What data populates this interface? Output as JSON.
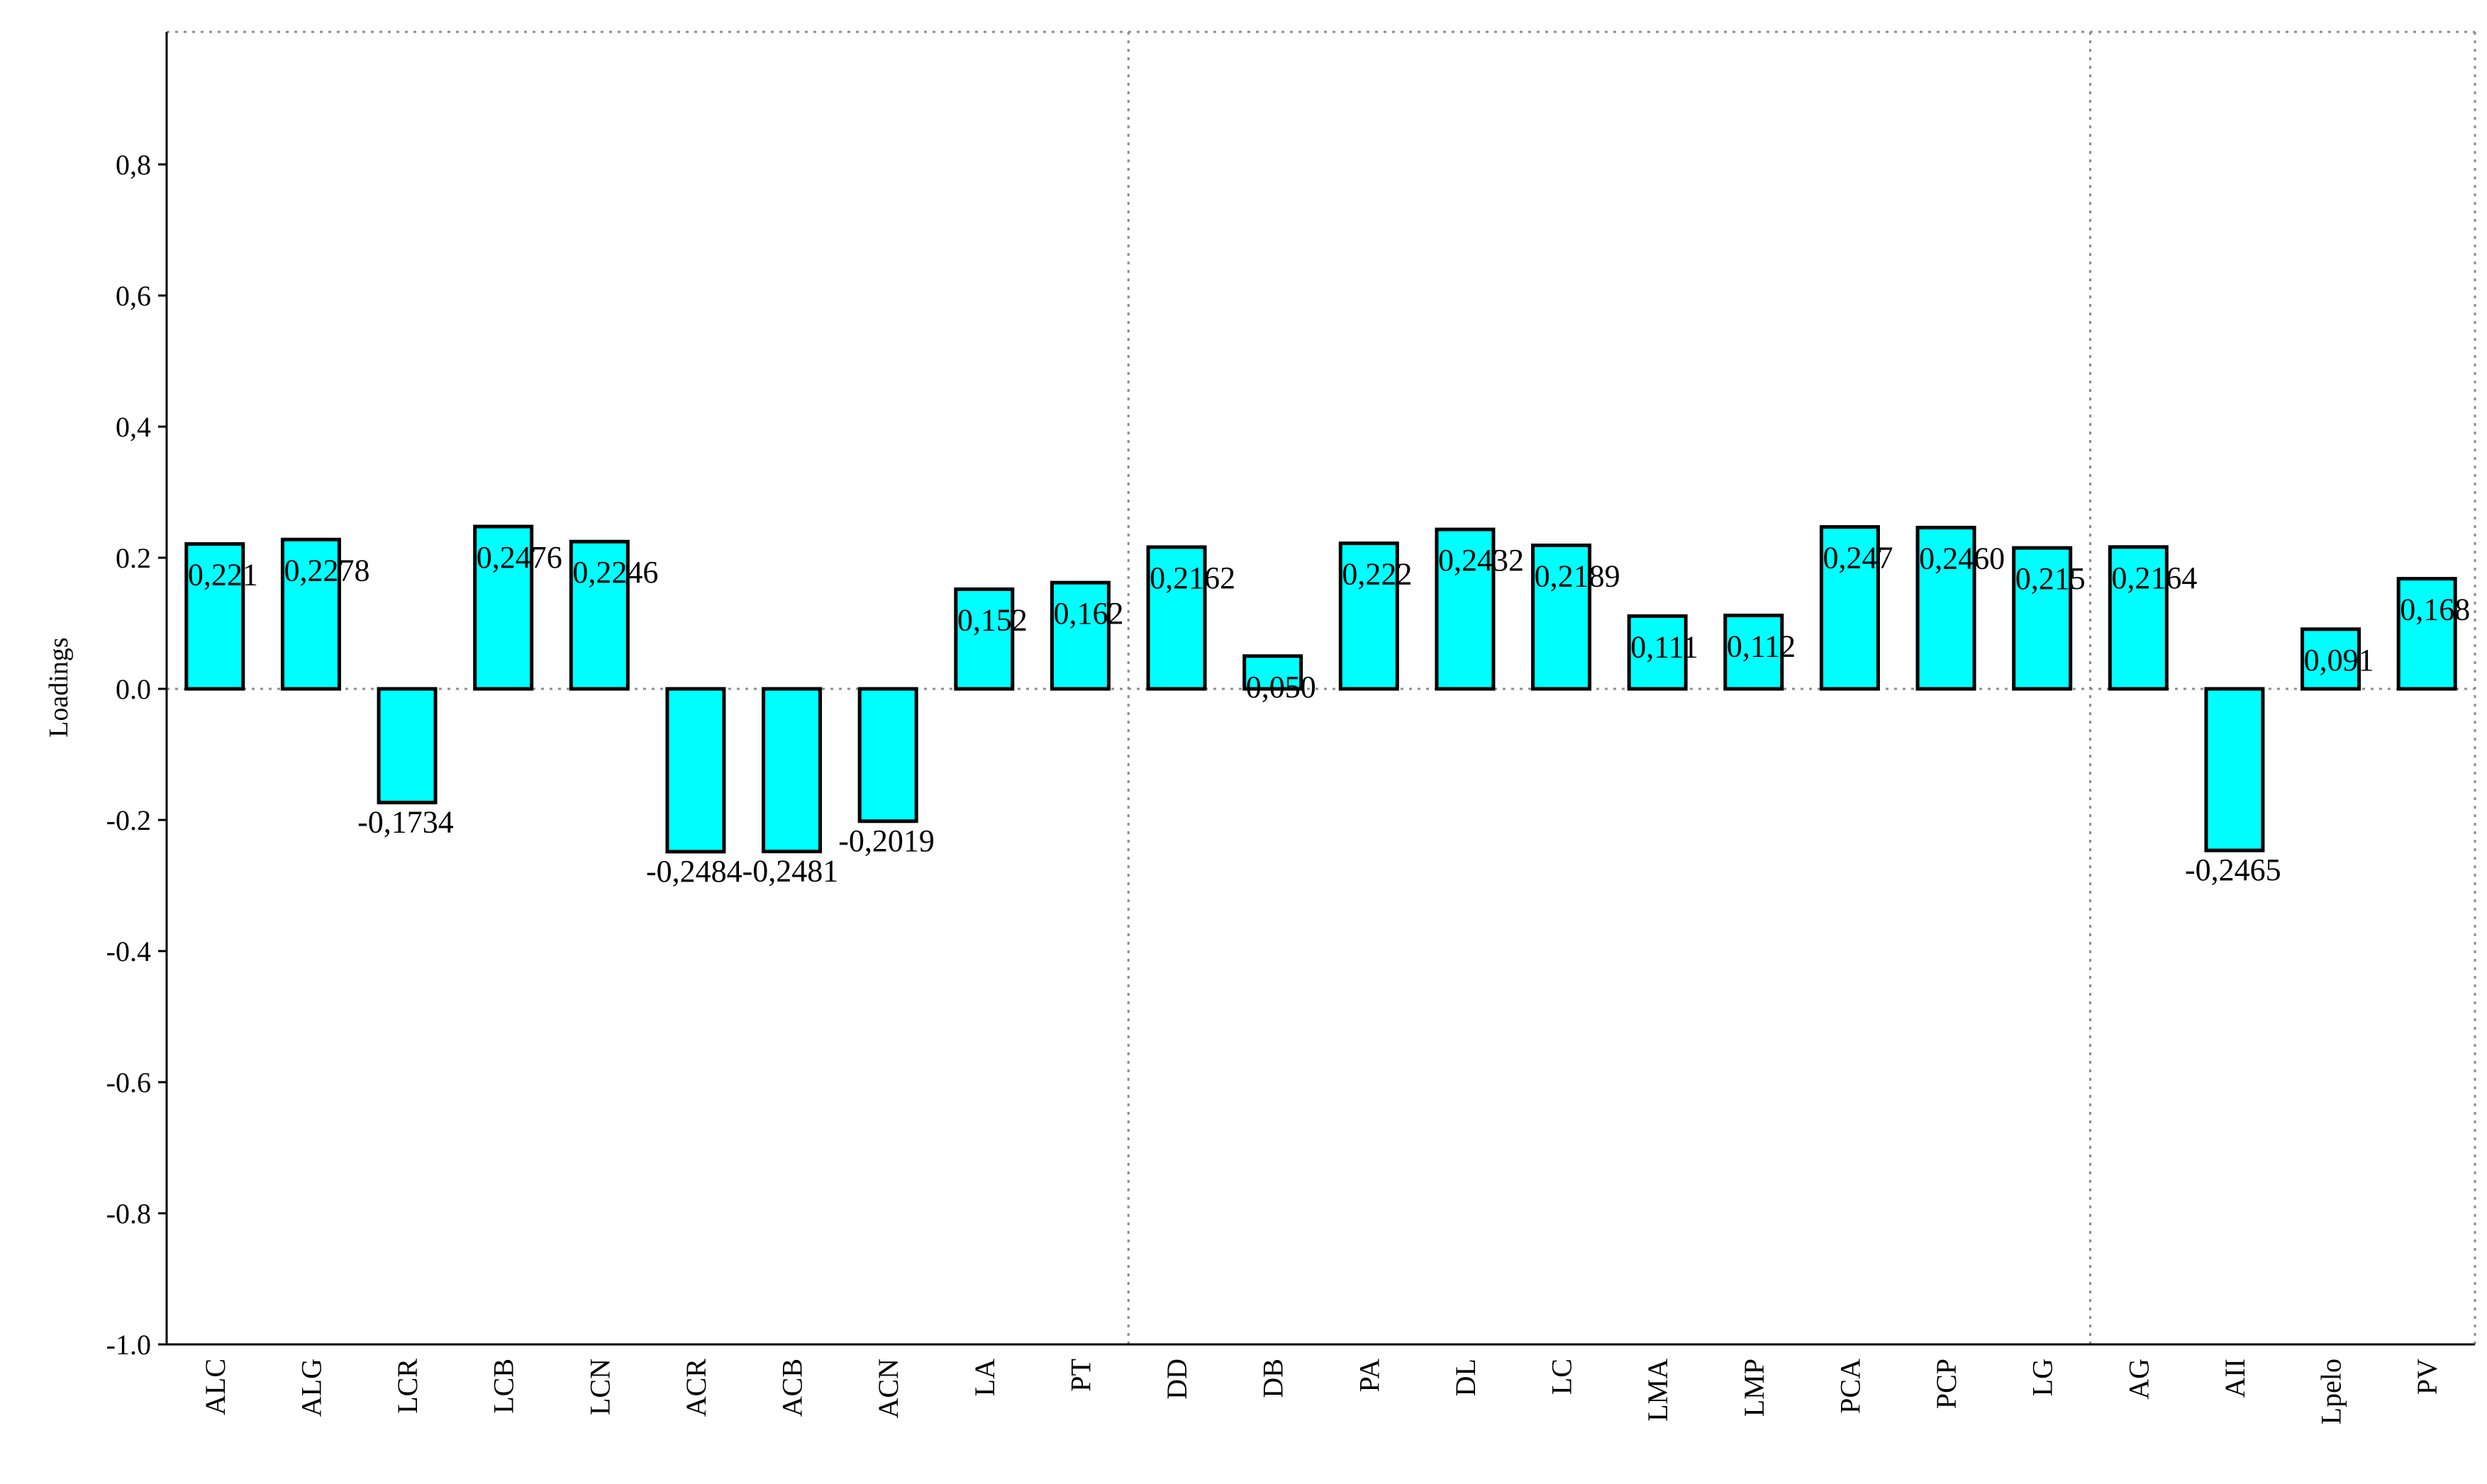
{
  "chart_data": {
    "type": "bar",
    "ylabel": "Loadings",
    "xlabel": "",
    "title": "",
    "ylim": [
      -1.0,
      1.0
    ],
    "y_ticks": [
      {
        "value": 0.8,
        "label": "0,8"
      },
      {
        "value": 0.6,
        "label": "0,6"
      },
      {
        "value": 0.4,
        "label": "0,4"
      },
      {
        "value": 0.2,
        "label": "0.2"
      },
      {
        "value": 0.0,
        "label": "0.0"
      },
      {
        "value": -0.2,
        "label": "-0.2"
      },
      {
        "value": -0.4,
        "label": "-0.4"
      },
      {
        "value": -0.6,
        "label": "-0.6"
      },
      {
        "value": -0.8,
        "label": "-0.8"
      },
      {
        "value": -1.0,
        "label": "-1.0"
      }
    ],
    "categories": [
      "ALC",
      "ALG",
      "LCR",
      "LCB",
      "LCN",
      "ACR",
      "ACB",
      "ACN",
      "LA",
      "PT",
      "DD",
      "DB",
      "PA",
      "DL",
      "LC",
      "LMA",
      "LMP",
      "PCA",
      "PCP",
      "LG",
      "AG",
      "AII",
      "Lpelo",
      "PV"
    ],
    "values": [
      0.221,
      0.2278,
      -0.1734,
      0.2476,
      0.2246,
      -0.2484,
      -0.2481,
      -0.2019,
      0.152,
      0.162,
      0.2162,
      0.05,
      0.222,
      0.2432,
      0.2189,
      0.111,
      0.112,
      0.247,
      0.246,
      0.215,
      0.2164,
      -0.2465,
      0.091,
      0.168
    ],
    "value_labels": [
      "0,221",
      "0,2278",
      "-0,1734",
      "0,2476",
      "0,2246",
      "-0,2484",
      "-0,2481",
      "-0,2019",
      "0,152",
      "0,162",
      "0,2162",
      "0,050",
      "0,222",
      "0,2432",
      "0,2189",
      "0,111",
      "0,112",
      "0,247",
      "0,2460",
      "0,215",
      "0,2164",
      "-0,2465",
      "0,091",
      "0,168"
    ],
    "group_dividers_after": [
      9,
      19
    ],
    "grid": false,
    "colors": {
      "bar_fill": "#00ffff",
      "bar_stroke": "#000000",
      "axis": "#000000",
      "dotted_line": "#8c8c8c"
    }
  }
}
